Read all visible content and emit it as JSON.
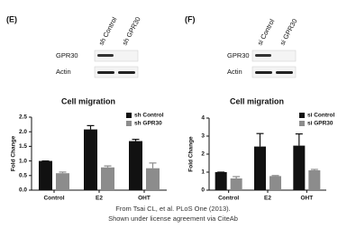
{
  "chart_data": [
    {
      "type": "bar",
      "panel_label": "(E)",
      "title": "Cell migration",
      "y_label": "Fold Change",
      "blot": {
        "lanes": [
          "sh Control",
          "sh GPR30"
        ],
        "rows": [
          "GPR30",
          "Actin"
        ]
      },
      "categories": [
        "Control",
        "E2",
        "OHT"
      ],
      "series": [
        {
          "name": "sh Control",
          "color": "#111111",
          "values": [
            1.0,
            2.08,
            1.68
          ],
          "errors": [
            0,
            0.13,
            0.06
          ]
        },
        {
          "name": "sh GPR30",
          "color": "#8c8c8c",
          "values": [
            0.58,
            0.78,
            0.75
          ],
          "errors": [
            0.04,
            0.05,
            0.18
          ]
        }
      ],
      "ylim": [
        0,
        2.5
      ],
      "yticks": [
        {
          "value": 0,
          "label": "0.0"
        },
        0.5,
        {
          "value": 1,
          "label": "1.0"
        },
        1.5,
        {
          "value": 2,
          "label": "2.0"
        },
        2.5
      ]
    },
    {
      "type": "bar",
      "panel_label": "(F)",
      "title": "Cell migration",
      "y_label": "Fold Change",
      "blot": {
        "lanes": [
          "si Control",
          "si GPR30"
        ],
        "rows": [
          "GPR30",
          "Actin"
        ]
      },
      "categories": [
        "Control",
        "E2",
        "OHT"
      ],
      "series": [
        {
          "name": "si Control",
          "color": "#111111",
          "values": [
            1.0,
            2.42,
            2.47
          ],
          "errors": [
            0,
            0.72,
            0.65
          ]
        },
        {
          "name": "si GPR30",
          "color": "#8c8c8c",
          "values": [
            0.65,
            0.78,
            1.1
          ],
          "errors": [
            0.1,
            0.03,
            0.05
          ]
        }
      ],
      "ylim": [
        0,
        4
      ],
      "yticks": [
        0,
        1,
        2,
        3,
        4
      ]
    }
  ],
  "caption": [
    "From Tsai CL, et al. PLoS One (2013).",
    "Shown under license agreement via CiteAb"
  ]
}
